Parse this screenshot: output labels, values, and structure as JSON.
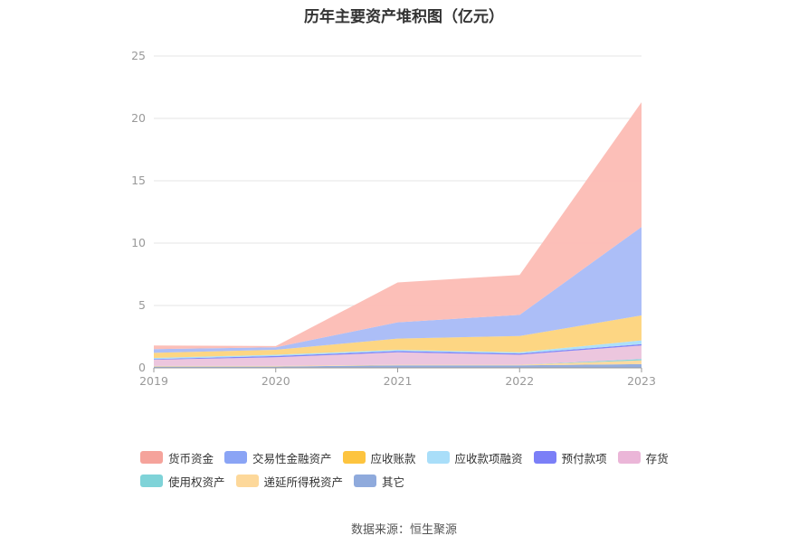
{
  "chart_data": {
    "type": "area",
    "stacked": true,
    "title": "历年主要资产堆积图（亿元）",
    "categories": [
      "2019",
      "2020",
      "2021",
      "2022",
      "2023"
    ],
    "ylim": [
      0,
      25
    ],
    "yticks": [
      0,
      5,
      10,
      15,
      20,
      25
    ],
    "grid": true,
    "legend_position": "bottom",
    "series": [
      {
        "name": "其它",
        "color": "#8faadc",
        "values": [
          0.1,
          0.1,
          0.2,
          0.2,
          0.3
        ]
      },
      {
        "name": "递延所得税资产",
        "color": "#fdd89a",
        "values": [
          0.05,
          0.05,
          0.05,
          0.05,
          0.3
        ]
      },
      {
        "name": "使用权资产",
        "color": "#7fd3d8",
        "values": [
          0.0,
          0.0,
          0.0,
          0.0,
          0.1
        ]
      },
      {
        "name": "存货",
        "color": "#ebc3dc",
        "values": [
          0.5,
          0.7,
          1.0,
          0.8,
          1.1
        ]
      },
      {
        "name": "预付款项",
        "color": "#7b7ff7",
        "values": [
          0.05,
          0.1,
          0.1,
          0.1,
          0.1
        ]
      },
      {
        "name": "应收款项融资",
        "color": "#a9def9",
        "values": [
          0.1,
          0.1,
          0.1,
          0.1,
          0.3
        ]
      },
      {
        "name": "应收账款",
        "color": "#fdd47c",
        "values": [
          0.4,
          0.4,
          0.9,
          1.3,
          2.0
        ]
      },
      {
        "name": "交易性金融资产",
        "color": "#a8baf7",
        "values": [
          0.3,
          0.2,
          1.3,
          1.7,
          7.1
        ]
      },
      {
        "name": "货币资金",
        "color": "#fcbcb4",
        "values": [
          0.3,
          0.1,
          3.2,
          3.2,
          10.0
        ]
      }
    ]
  },
  "legend": {
    "rows": [
      [
        {
          "name": "货币资金",
          "color": "#f5a39b"
        },
        {
          "name": "交易性金融资产",
          "color": "#8aa4f5"
        },
        {
          "name": "应收账款",
          "color": "#fdc43f"
        },
        {
          "name": "应收款项融资",
          "color": "#a9def9"
        },
        {
          "name": "预付款项",
          "color": "#7b7ff7"
        },
        {
          "name": "存货",
          "color": "#ebb6d8"
        }
      ],
      [
        {
          "name": "使用权资产",
          "color": "#7fd3d8"
        },
        {
          "name": "递延所得税资产",
          "color": "#fdd89a"
        },
        {
          "name": "其它",
          "color": "#8faadc"
        }
      ]
    ]
  },
  "source": "数据来源：恒生聚源"
}
